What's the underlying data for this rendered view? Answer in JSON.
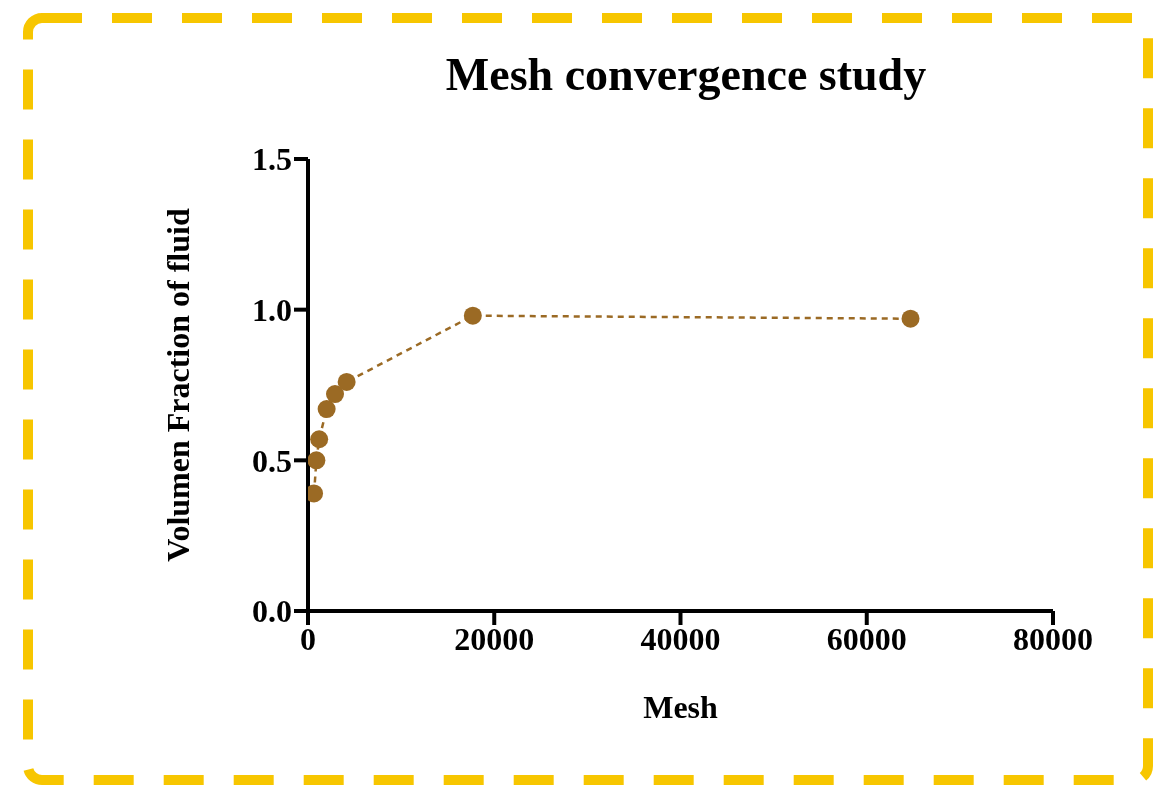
{
  "chart_data": {
    "type": "line",
    "title": "Mesh convergence study",
    "xlabel": "Mesh",
    "ylabel": "Volumen Fraction of fluid",
    "x": [
      650,
      900,
      1200,
      2000,
      2900,
      4150,
      17700,
      64700
    ],
    "series": [
      {
        "color": "#9b6a24",
        "values": [
          0.39,
          0.5,
          0.57,
          0.67,
          0.72,
          0.76,
          0.98,
          0.97
        ]
      }
    ],
    "xlim": [
      0,
      80000
    ],
    "xticks": [
      0,
      20000,
      40000,
      60000,
      80000
    ],
    "ylim": [
      0,
      1.5
    ],
    "yticks": [
      {
        "value": 0,
        "label": "0.0"
      },
      {
        "value": 0.5,
        "label": "0.5"
      },
      {
        "value": 1,
        "label": "1.0"
      },
      {
        "value": 1.5,
        "label": "1.5"
      }
    ],
    "grid": false,
    "legend": false,
    "marker": "circle",
    "line_style": "dashed"
  }
}
